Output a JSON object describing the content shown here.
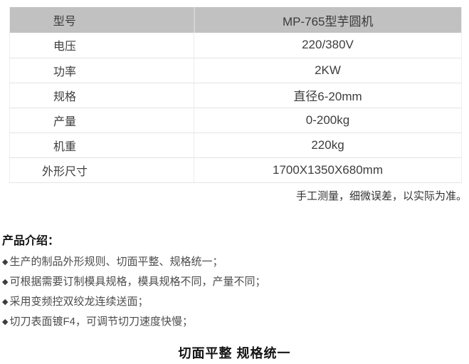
{
  "spec_table": {
    "header": {
      "label": "型号",
      "value": "MP-765型芋圆机"
    },
    "rows": [
      {
        "label": "电压",
        "value": "220/380V"
      },
      {
        "label": "功率",
        "value": "2KW"
      },
      {
        "label": "规格",
        "value": "直径6-20mm"
      },
      {
        "label": "产量",
        "value": "0-200kg"
      },
      {
        "label": "机重",
        "value": "220kg"
      },
      {
        "label": "外形尺寸",
        "value": "1700X1350X680mm"
      }
    ],
    "colors": {
      "header_bg": "#c1c1c1",
      "row_border": "#e4e4e4",
      "text": "#3e3e3e"
    }
  },
  "disclaimer": "手工测量，细微误差，以实际为准。",
  "intro": {
    "heading": "产品介绍：",
    "bullet_marker": "◆",
    "bullets": [
      "生产的制品外形规则、切面平整、规格统一；",
      "可根据需要订制模具规格，模具规格不同，产量不同；",
      "采用变频控双绞龙连续送面；",
      "切刀表面镀F4，可调节切刀速度快慢；"
    ]
  },
  "footer_title": "切面平整  规格统一"
}
